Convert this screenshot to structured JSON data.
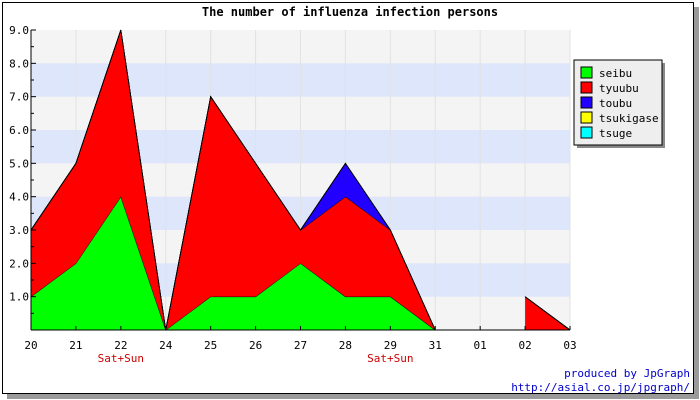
{
  "chart_data": {
    "type": "area",
    "stacked": true,
    "title": "The number of influenza infection persons",
    "categories": [
      "20",
      "21",
      "22",
      "24",
      "25",
      "26",
      "27",
      "28",
      "29",
      "31",
      "01",
      "02",
      "03"
    ],
    "category_notes": {
      "22": "Sat+Sun",
      "29": "Sat+Sun"
    },
    "ylim": [
      0,
      9.0
    ],
    "yticks": [
      "1.0",
      "2.0",
      "3.0",
      "4.0",
      "5.0",
      "6.0",
      "7.0",
      "8.0",
      "9.0"
    ],
    "legend_position": "right",
    "series": [
      {
        "name": "seibu",
        "color": "#00ff00",
        "values": [
          1,
          2,
          4,
          0,
          1,
          1,
          2,
          1,
          1,
          0,
          null,
          0,
          0
        ]
      },
      {
        "name": "tyuubu",
        "color": "#ff0000",
        "values": [
          2,
          3,
          5,
          0,
          6,
          4,
          1,
          3,
          2,
          0,
          null,
          1,
          0
        ]
      },
      {
        "name": "toubu",
        "color": "#2200ff",
        "values": [
          0,
          0,
          0,
          0,
          0,
          0,
          0,
          1,
          0,
          0,
          null,
          0,
          0
        ]
      },
      {
        "name": "tsukigase",
        "color": "#ffff00",
        "values": [
          0,
          0,
          0,
          0,
          0,
          0,
          0,
          0,
          0,
          0,
          null,
          0,
          0
        ]
      },
      {
        "name": "tsuge",
        "color": "#00ffff",
        "values": [
          0,
          0,
          0,
          0,
          0,
          0,
          0,
          0,
          0,
          0,
          null,
          0,
          0
        ]
      }
    ],
    "grid": "horizontal bands"
  },
  "footer": {
    "line1": "produced by JpGraph",
    "line2": "http://asial.co.jp/jpgraph/"
  }
}
